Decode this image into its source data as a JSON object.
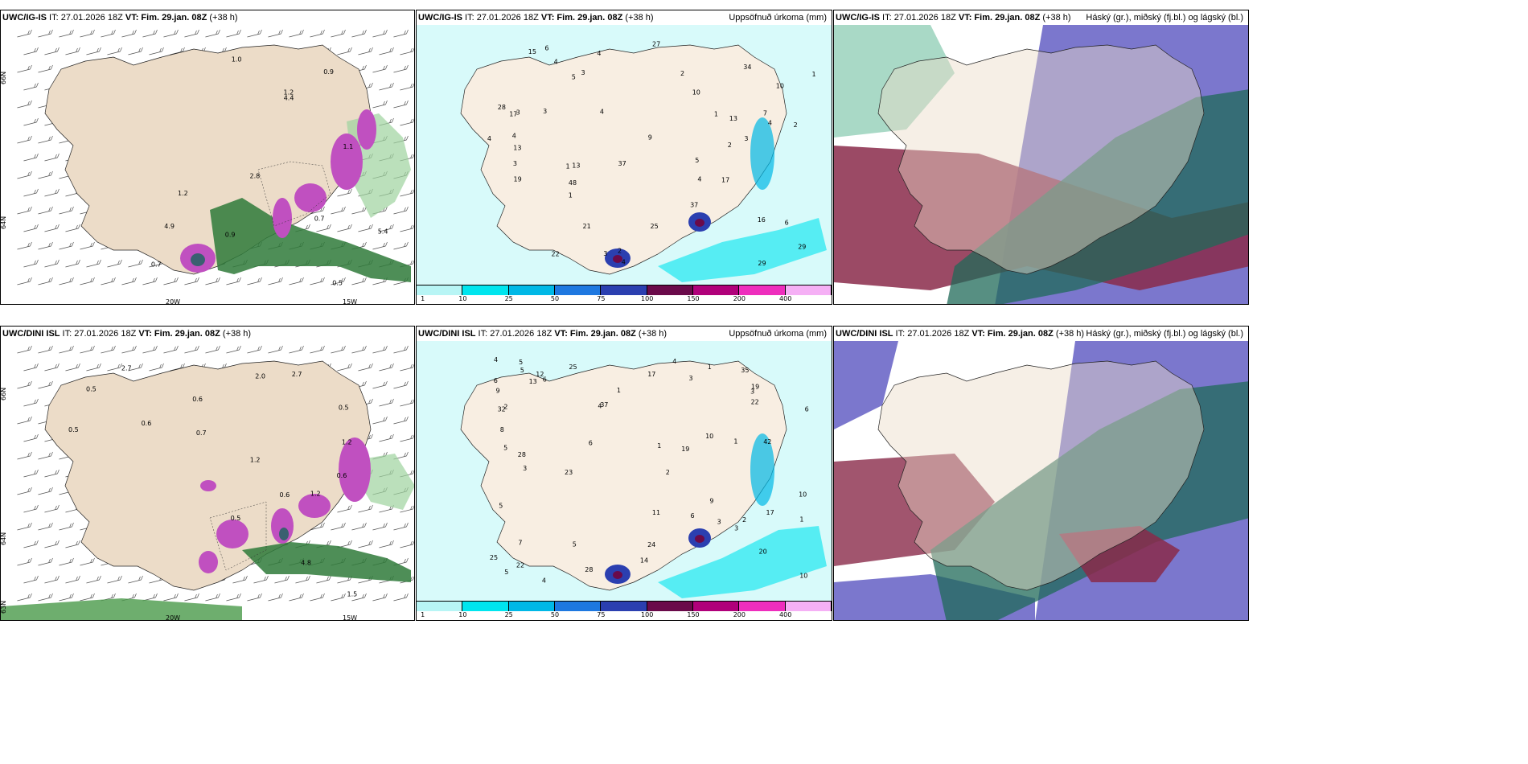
{
  "panels": [
    {
      "model": "UWC/IG-IS",
      "info": " IT: 27.01.2026 18Z ",
      "vt": "VT: Fim. 29.jan. 08Z",
      "lead": " (+38 h)",
      "right": ""
    },
    {
      "model": "UWC/IG-IS",
      "info": " IT: 27.01.2026 18Z ",
      "vt": "VT: Fim. 29.jan. 08Z",
      "lead": " (+38 h)",
      "right": "Uppsöfnuð úrkoma (mm)"
    },
    {
      "model": "UWC/IG-IS",
      "info": " IT: 27.01.2026 18Z ",
      "vt": "VT: Fim. 29.jan. 08Z",
      "lead": " (+38 h)",
      "right": "Háský (gr.), miðský (fj.bl.) og lágský (bl.)"
    },
    {
      "model": "UWC/DINI ISL",
      "info": " IT: 27.01.2026 18Z ",
      "vt": "VT: Fim. 29.jan. 08Z",
      "lead": " (+38 h)",
      "right": ""
    },
    {
      "model": "UWC/DINI ISL",
      "info": " IT: 27.01.2026 18Z ",
      "vt": "VT: Fim. 29.jan. 08Z",
      "lead": " (+38 h)",
      "right": "Uppsöfnuð úrkoma (mm)"
    },
    {
      "model": "UWC/DINI ISL",
      "info": " IT: 27.01.2026 18Z ",
      "vt": "VT: Fim. 29.jan. 08Z",
      "lead": " (+38 h)",
      "right": "Háský (gr.), miðský (fj.bl.) og lágský (bl.)"
    }
  ],
  "axis": {
    "lat66": "66N",
    "lat64": "64N",
    "lat63": "63N",
    "lon20": "20W",
    "lon15": "15W"
  },
  "legend": {
    "ticks": [
      "1",
      "10",
      "25",
      "50",
      "75",
      "100",
      "150",
      "200",
      "400"
    ],
    "colors": [
      "#b8f5f5",
      "#00e5ee",
      "#00b8e6",
      "#1e78e0",
      "#2b3fb0",
      "#6a0a4a",
      "#b0007a",
      "#ee2ebd",
      "#f5b0f5"
    ]
  },
  "labels": {
    "p1": [
      "0.7",
      "0.9",
      "0.5",
      "1.2",
      "5.4",
      "4.9",
      "2.8",
      "1.1",
      "1.2",
      "0.9",
      "1.0",
      "0.7",
      "4.4"
    ],
    "p2": [
      "2",
      "3",
      "4",
      "1",
      "4",
      "4",
      "3",
      "3",
      "2",
      "5",
      "5",
      "2",
      "3",
      "4",
      "4",
      "6",
      "29",
      "21",
      "28",
      "37",
      "15",
      "7",
      "4",
      "6",
      "10",
      "22",
      "34",
      "13",
      "13",
      "48",
      "27",
      "17",
      "29",
      "13",
      "25",
      "3",
      "4",
      "1",
      "3",
      "19",
      "1",
      "37",
      "16",
      "17",
      "9",
      "10",
      "4",
      "1",
      "2"
    ],
    "p4": [
      "0.5",
      "1.5",
      "0.5",
      "2.7",
      "4.8",
      "0.6",
      "0.7",
      "0.6",
      "0.6",
      "1.2",
      "1.2",
      "1.2",
      "0.6",
      "2.0",
      "0.5",
      "2.7",
      "0.5"
    ],
    "p5": [
      "4",
      "4",
      "1",
      "1",
      "1",
      "1",
      "6",
      "5",
      "5",
      "5",
      "3",
      "3",
      "3",
      "2",
      "2",
      "1",
      "3",
      "6",
      "5",
      "4",
      "4",
      "3",
      "2",
      "10",
      "10",
      "28",
      "22",
      "25",
      "22",
      "37",
      "28",
      "24",
      "9",
      "13",
      "11",
      "17",
      "17",
      "6",
      "8",
      "35",
      "42",
      "32",
      "23",
      "20",
      "19",
      "19",
      "14",
      "10",
      "12",
      "7",
      "6",
      "5",
      "5",
      "6",
      "25",
      "9"
    ]
  }
}
